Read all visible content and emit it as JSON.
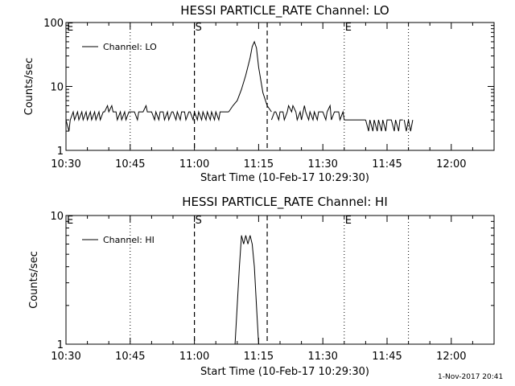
{
  "footer": {
    "timestamp": "1-Nov-2017 20:41"
  },
  "chart_data": [
    {
      "type": "line",
      "title": "HESSI PARTICLE_RATE Channel: LO",
      "xlabel": "Start Time (10-Feb-17 10:29:30)",
      "ylabel": "Counts/sec",
      "yscale": "log",
      "ylim": [
        1,
        100
      ],
      "ytick_labels": [
        "1",
        "10",
        "100"
      ],
      "xlim_minutes": [
        0,
        100
      ],
      "xtick_labels": [
        "10:30",
        "10:45",
        "11:00",
        "11:15",
        "11:30",
        "11:45",
        "12:00"
      ],
      "legend": {
        "label": "Channel: LO",
        "placement": "top-left"
      },
      "markers": [
        {
          "label": "E",
          "minute": 0,
          "style": "dotted"
        },
        {
          "label": "",
          "minute": 15,
          "style": "dotted"
        },
        {
          "label": "S",
          "minute": 30,
          "style": "dashed"
        },
        {
          "label": "",
          "minute": 47,
          "style": "dashed"
        },
        {
          "label": "E",
          "minute": 65,
          "style": "dotted"
        },
        {
          "label": "",
          "minute": 80,
          "style": "dotted"
        }
      ],
      "series": [
        {
          "name": "Channel: LO",
          "segments": [
            {
              "x": [
                0,
                0.7,
                1,
                1.7,
                2,
                2.7,
                3,
                3.7,
                4,
                4.7,
                5,
                5.7,
                6,
                6.7,
                7,
                7.7,
                8,
                8.7,
                9,
                9.7,
                10,
                10.7,
                11,
                11.7,
                12,
                12.7,
                13,
                13.7,
                14,
                14.7,
                15,
                15.7,
                16,
                16.7,
                17,
                17.7,
                18,
                18.7,
                19,
                19.7,
                20,
                20.7,
                21,
                21.7,
                22,
                22.7,
                23,
                23.7,
                24,
                24.7,
                25,
                25.7,
                26,
                26.7,
                27,
                27.7,
                28,
                28.7,
                29,
                29.7,
                30,
                30.7,
                31,
                31.7,
                32,
                32.7,
                33,
                33.7,
                34,
                34.7,
                35,
                35.7,
                36,
                36.7,
                37,
                37.7,
                38
              ],
              "y": [
                3,
                2,
                3,
                4,
                3,
                4,
                3,
                4,
                3,
                4,
                3,
                4,
                3,
                4,
                3,
                4,
                3,
                4,
                4,
                5,
                4,
                5,
                4,
                4,
                3,
                4,
                3,
                4,
                3,
                4,
                4,
                4,
                4,
                3,
                4,
                4,
                4,
                5,
                4,
                4,
                4,
                3,
                4,
                3,
                4,
                4,
                3,
                4,
                3,
                4,
                4,
                3,
                4,
                3,
                4,
                4,
                3,
                4,
                4,
                3,
                4,
                3,
                4,
                3,
                4,
                3,
                4,
                3,
                4,
                3,
                4,
                3,
                4,
                4,
                4,
                4,
                4
              ]
            },
            {
              "x": [
                38,
                39,
                40,
                41,
                42,
                43,
                43.5,
                44,
                44.5,
                45,
                46,
                47,
                48
              ],
              "y": [
                4,
                5,
                6,
                9,
                15,
                28,
                42,
                50,
                40,
                20,
                8,
                5,
                4
              ]
            },
            {
              "x": [
                48,
                48.7,
                49,
                49.7,
                50,
                50.7,
                51,
                51.7,
                52,
                52.7,
                53,
                53.7,
                54,
                54.7,
                55,
                55.7,
                56,
                56.7,
                57,
                57.7,
                58,
                58.7,
                59,
                59.7,
                60,
                60.7,
                61,
                61.7,
                62,
                62.7,
                63,
                63.7,
                64,
                64.7,
                65,
                66,
                67,
                68,
                69,
                70
              ],
              "y": [
                3,
                4,
                4,
                3,
                4,
                4,
                3,
                4,
                5,
                4,
                5,
                4,
                3,
                4,
                3,
                5,
                4,
                3,
                4,
                3,
                4,
                3,
                4,
                4,
                4,
                3,
                4,
                5,
                3,
                4,
                4,
                4,
                3,
                4,
                3,
                3,
                3,
                3,
                3,
                3
              ]
            },
            {
              "x": [
                70,
                70.7,
                71,
                71.7,
                72,
                72.7,
                73,
                73.7,
                74,
                74.7,
                75,
                75.7,
                76,
                76.7,
                77,
                77.7,
                78,
                78.7
              ],
              "y": [
                3,
                2,
                3,
                2,
                3,
                2,
                3,
                2,
                3,
                2,
                3,
                3,
                3,
                2,
                3,
                2,
                3,
                3
              ]
            },
            {
              "x": [
                79,
                79.5,
                80,
                80.5,
                81
              ],
              "y": [
                3,
                2,
                3,
                2,
                3
              ]
            }
          ]
        }
      ]
    },
    {
      "type": "line",
      "title": "HESSI PARTICLE_RATE Channel: HI",
      "xlabel": "Start Time (10-Feb-17 10:29:30)",
      "ylabel": "Counts/sec",
      "yscale": "log",
      "ylim": [
        1,
        10
      ],
      "ytick_labels": [
        "1",
        "10"
      ],
      "xlim_minutes": [
        0,
        100
      ],
      "xtick_labels": [
        "10:30",
        "10:45",
        "11:00",
        "11:15",
        "11:30",
        "11:45",
        "12:00"
      ],
      "legend": {
        "label": "Channel: HI",
        "placement": "top-left"
      },
      "markers": [
        {
          "label": "E",
          "minute": 0,
          "style": "dotted"
        },
        {
          "label": "",
          "minute": 15,
          "style": "dotted"
        },
        {
          "label": "S",
          "minute": 30,
          "style": "dashed"
        },
        {
          "label": "",
          "minute": 47,
          "style": "dashed"
        },
        {
          "label": "E",
          "minute": 65,
          "style": "dotted"
        },
        {
          "label": "",
          "minute": 80,
          "style": "dotted"
        }
      ],
      "series": [
        {
          "name": "Channel: HI",
          "segments": [
            {
              "x": [
                39.5,
                40,
                40.5,
                41,
                41.5,
                42,
                42.5,
                43,
                43.5,
                44,
                44.5,
                45
              ],
              "y": [
                1,
                2,
                4,
                7,
                6,
                7,
                6,
                7,
                6,
                4,
                2,
                1
              ]
            }
          ]
        }
      ]
    }
  ]
}
